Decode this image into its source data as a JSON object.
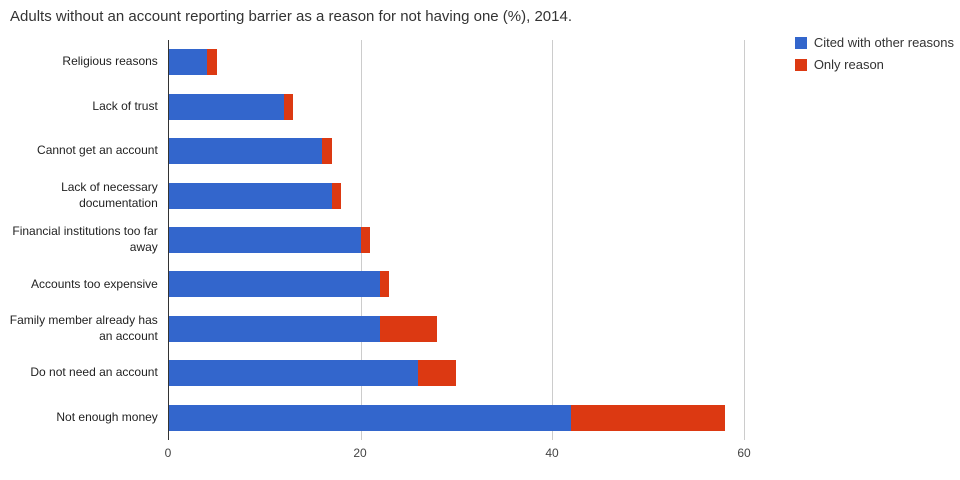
{
  "title": "Adults without an account reporting barrier as a reason for not having one (%), 2014.",
  "legend": [
    {
      "label": "Cited with other reasons",
      "color": "#3366CC"
    },
    {
      "label": "Only reason",
      "color": "#DC3912"
    }
  ],
  "chart_data": {
    "type": "bar",
    "orientation": "horizontal",
    "stacked": true,
    "title": "Adults without an account reporting barrier as a reason for not having one (%), 2014.",
    "categories": [
      "Religious reasons",
      "Lack of trust",
      "Cannot get an account",
      "Lack of necessary documentation",
      "Financial institutions too far away",
      "Accounts too expensive",
      "Family member already has an account",
      "Do not need an account",
      "Not enough money"
    ],
    "series": [
      {
        "name": "Cited with other reasons",
        "color": "#3366CC",
        "values": [
          4,
          12,
          16,
          17,
          20,
          22,
          22,
          26,
          42
        ]
      },
      {
        "name": "Only reason",
        "color": "#DC3912",
        "values": [
          1,
          1,
          1,
          1,
          1,
          1,
          6,
          4,
          16
        ]
      }
    ],
    "xlabel": "",
    "ylabel": "",
    "xlim": [
      0,
      62.5
    ],
    "xticks": [
      0,
      20,
      40,
      60
    ],
    "grid": true,
    "legend_position": "top-right"
  }
}
